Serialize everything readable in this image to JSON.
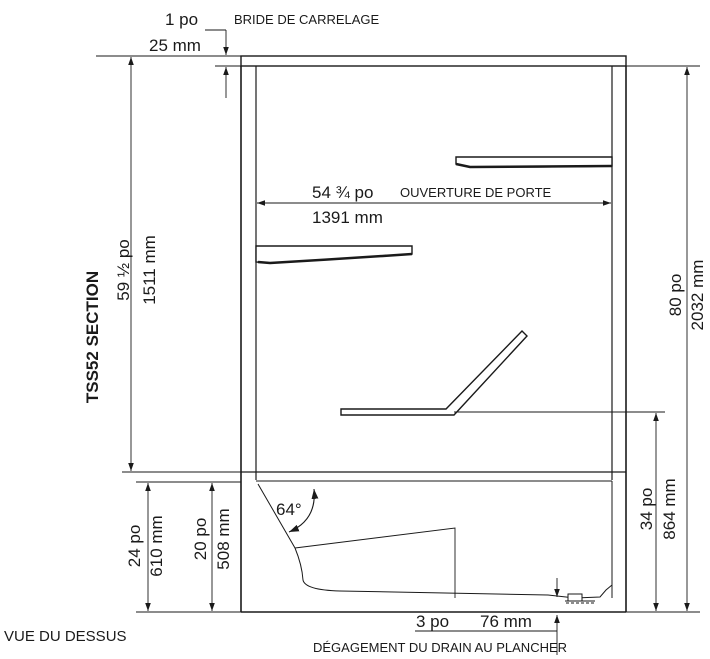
{
  "tile_flange": {
    "imperial": "1 po",
    "metric": "25 mm",
    "label": "BRIDE DE CARRELAGE"
  },
  "door_opening": {
    "imperial": "54 ¾ po",
    "metric": "1391 mm",
    "label": "OUVERTURE DE PORTE"
  },
  "left_height": {
    "imperial": "59 ½ po",
    "metric": "1511 mm"
  },
  "section_title": "TSS52 SECTION",
  "total_height": {
    "imperial": "80 po",
    "metric": "2032 mm"
  },
  "seat_height": {
    "imperial": "34 po",
    "metric": "864 mm"
  },
  "base_height": {
    "imperial": "24 po",
    "metric": "610 mm"
  },
  "tub_depth": {
    "imperial": "20 po",
    "metric": "508 mm"
  },
  "angle": "64°",
  "drain_clearance": {
    "imperial": "3 po",
    "metric": "76 mm",
    "label": "DÉGAGEMENT DU DRAIN AU PLANCHER"
  },
  "view_label": "VUE DU DESSUS"
}
